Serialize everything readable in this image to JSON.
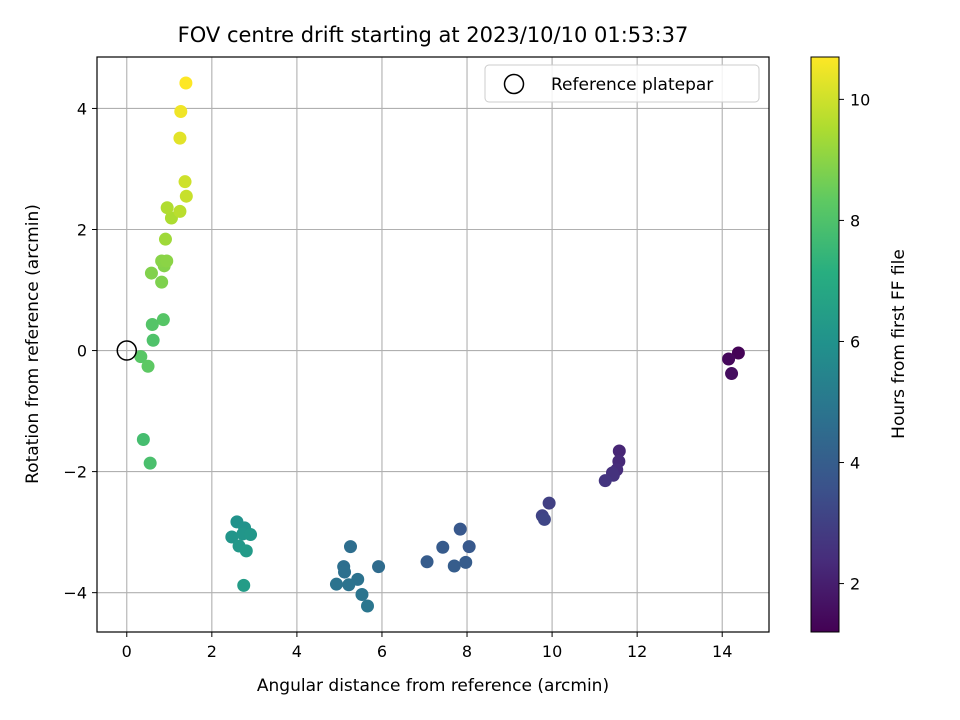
{
  "chart_data": {
    "type": "scatter",
    "title": "FOV centre drift starting at 2023/10/10 01:53:37",
    "xlabel": "Angular distance from reference (arcmin)",
    "ylabel": "Rotation from reference (arcmin)",
    "xlim": [
      -0.7,
      15.1
    ],
    "ylim": [
      -4.65,
      4.85
    ],
    "xticks": [
      0,
      2,
      4,
      6,
      8,
      10,
      12,
      14
    ],
    "yticks": [
      -4,
      -2,
      0,
      2,
      4
    ],
    "grid": true,
    "legend": {
      "position": "top-right",
      "entries": [
        "Reference platepar"
      ]
    },
    "reference_point": {
      "x": 0,
      "y": 0
    },
    "colorbar": {
      "label": "Hours from first FF file",
      "colormap": "viridis",
      "range": [
        1.2,
        10.7
      ],
      "ticks": [
        2,
        4,
        6,
        8,
        10
      ]
    },
    "points": [
      {
        "x": 14.38,
        "y": -0.04,
        "h": 1.25
      },
      {
        "x": 14.15,
        "y": -0.14,
        "h": 1.4
      },
      {
        "x": 14.22,
        "y": -0.38,
        "h": 1.55
      },
      {
        "x": 11.58,
        "y": -1.66,
        "h": 2.2
      },
      {
        "x": 11.57,
        "y": -1.83,
        "h": 2.3
      },
      {
        "x": 11.52,
        "y": -1.97,
        "h": 2.4
      },
      {
        "x": 11.42,
        "y": -2.02,
        "h": 2.5
      },
      {
        "x": 11.44,
        "y": -2.06,
        "h": 2.55
      },
      {
        "x": 11.25,
        "y": -2.15,
        "h": 2.65
      },
      {
        "x": 9.93,
        "y": -2.52,
        "h": 3.0
      },
      {
        "x": 9.77,
        "y": -2.73,
        "h": 3.1
      },
      {
        "x": 9.82,
        "y": -2.79,
        "h": 3.2
      },
      {
        "x": 7.84,
        "y": -2.95,
        "h": 3.8
      },
      {
        "x": 8.05,
        "y": -3.24,
        "h": 3.85
      },
      {
        "x": 7.43,
        "y": -3.25,
        "h": 3.9
      },
      {
        "x": 7.97,
        "y": -3.5,
        "h": 3.95
      },
      {
        "x": 7.06,
        "y": -3.49,
        "h": 3.95
      },
      {
        "x": 7.7,
        "y": -3.56,
        "h": 4.0
      },
      {
        "x": 5.92,
        "y": -3.57,
        "h": 4.5
      },
      {
        "x": 5.26,
        "y": -3.24,
        "h": 4.6
      },
      {
        "x": 5.1,
        "y": -3.57,
        "h": 4.65
      },
      {
        "x": 5.12,
        "y": -3.66,
        "h": 4.7
      },
      {
        "x": 5.43,
        "y": -3.78,
        "h": 4.75
      },
      {
        "x": 4.93,
        "y": -3.86,
        "h": 4.8
      },
      {
        "x": 5.22,
        "y": -3.87,
        "h": 4.8
      },
      {
        "x": 5.53,
        "y": -4.03,
        "h": 4.85
      },
      {
        "x": 5.66,
        "y": -4.22,
        "h": 4.9
      },
      {
        "x": 2.59,
        "y": -2.83,
        "h": 6.0
      },
      {
        "x": 2.77,
        "y": -2.93,
        "h": 6.05
      },
      {
        "x": 2.47,
        "y": -3.08,
        "h": 6.1
      },
      {
        "x": 2.73,
        "y": -3.03,
        "h": 6.15
      },
      {
        "x": 2.91,
        "y": -3.04,
        "h": 6.2
      },
      {
        "x": 2.64,
        "y": -3.23,
        "h": 6.25
      },
      {
        "x": 2.81,
        "y": -3.31,
        "h": 6.3
      },
      {
        "x": 2.75,
        "y": -3.88,
        "h": 6.4
      },
      {
        "x": 0.39,
        "y": -1.47,
        "h": 7.8
      },
      {
        "x": 0.55,
        "y": -1.86,
        "h": 7.9
      },
      {
        "x": 0.33,
        "y": -0.1,
        "h": 8.2
      },
      {
        "x": 0.5,
        "y": -0.26,
        "h": 8.3
      },
      {
        "x": 0.62,
        "y": 0.17,
        "h": 8.0
      },
      {
        "x": 0.6,
        "y": 0.43,
        "h": 8.1
      },
      {
        "x": 0.86,
        "y": 0.51,
        "h": 8.15
      },
      {
        "x": 0.82,
        "y": 1.13,
        "h": 8.8
      },
      {
        "x": 0.58,
        "y": 1.28,
        "h": 8.85
      },
      {
        "x": 0.88,
        "y": 1.4,
        "h": 8.9
      },
      {
        "x": 0.82,
        "y": 1.48,
        "h": 8.95
      },
      {
        "x": 0.94,
        "y": 1.48,
        "h": 9.0
      },
      {
        "x": 0.91,
        "y": 1.84,
        "h": 9.3
      },
      {
        "x": 1.05,
        "y": 2.19,
        "h": 9.5
      },
      {
        "x": 0.95,
        "y": 2.36,
        "h": 9.55
      },
      {
        "x": 1.25,
        "y": 2.3,
        "h": 9.7
      },
      {
        "x": 1.4,
        "y": 2.55,
        "h": 9.9
      },
      {
        "x": 1.37,
        "y": 2.79,
        "h": 10.0
      },
      {
        "x": 1.25,
        "y": 3.51,
        "h": 10.3
      },
      {
        "x": 1.27,
        "y": 3.95,
        "h": 10.5
      },
      {
        "x": 1.39,
        "y": 4.42,
        "h": 10.7
      }
    ]
  }
}
